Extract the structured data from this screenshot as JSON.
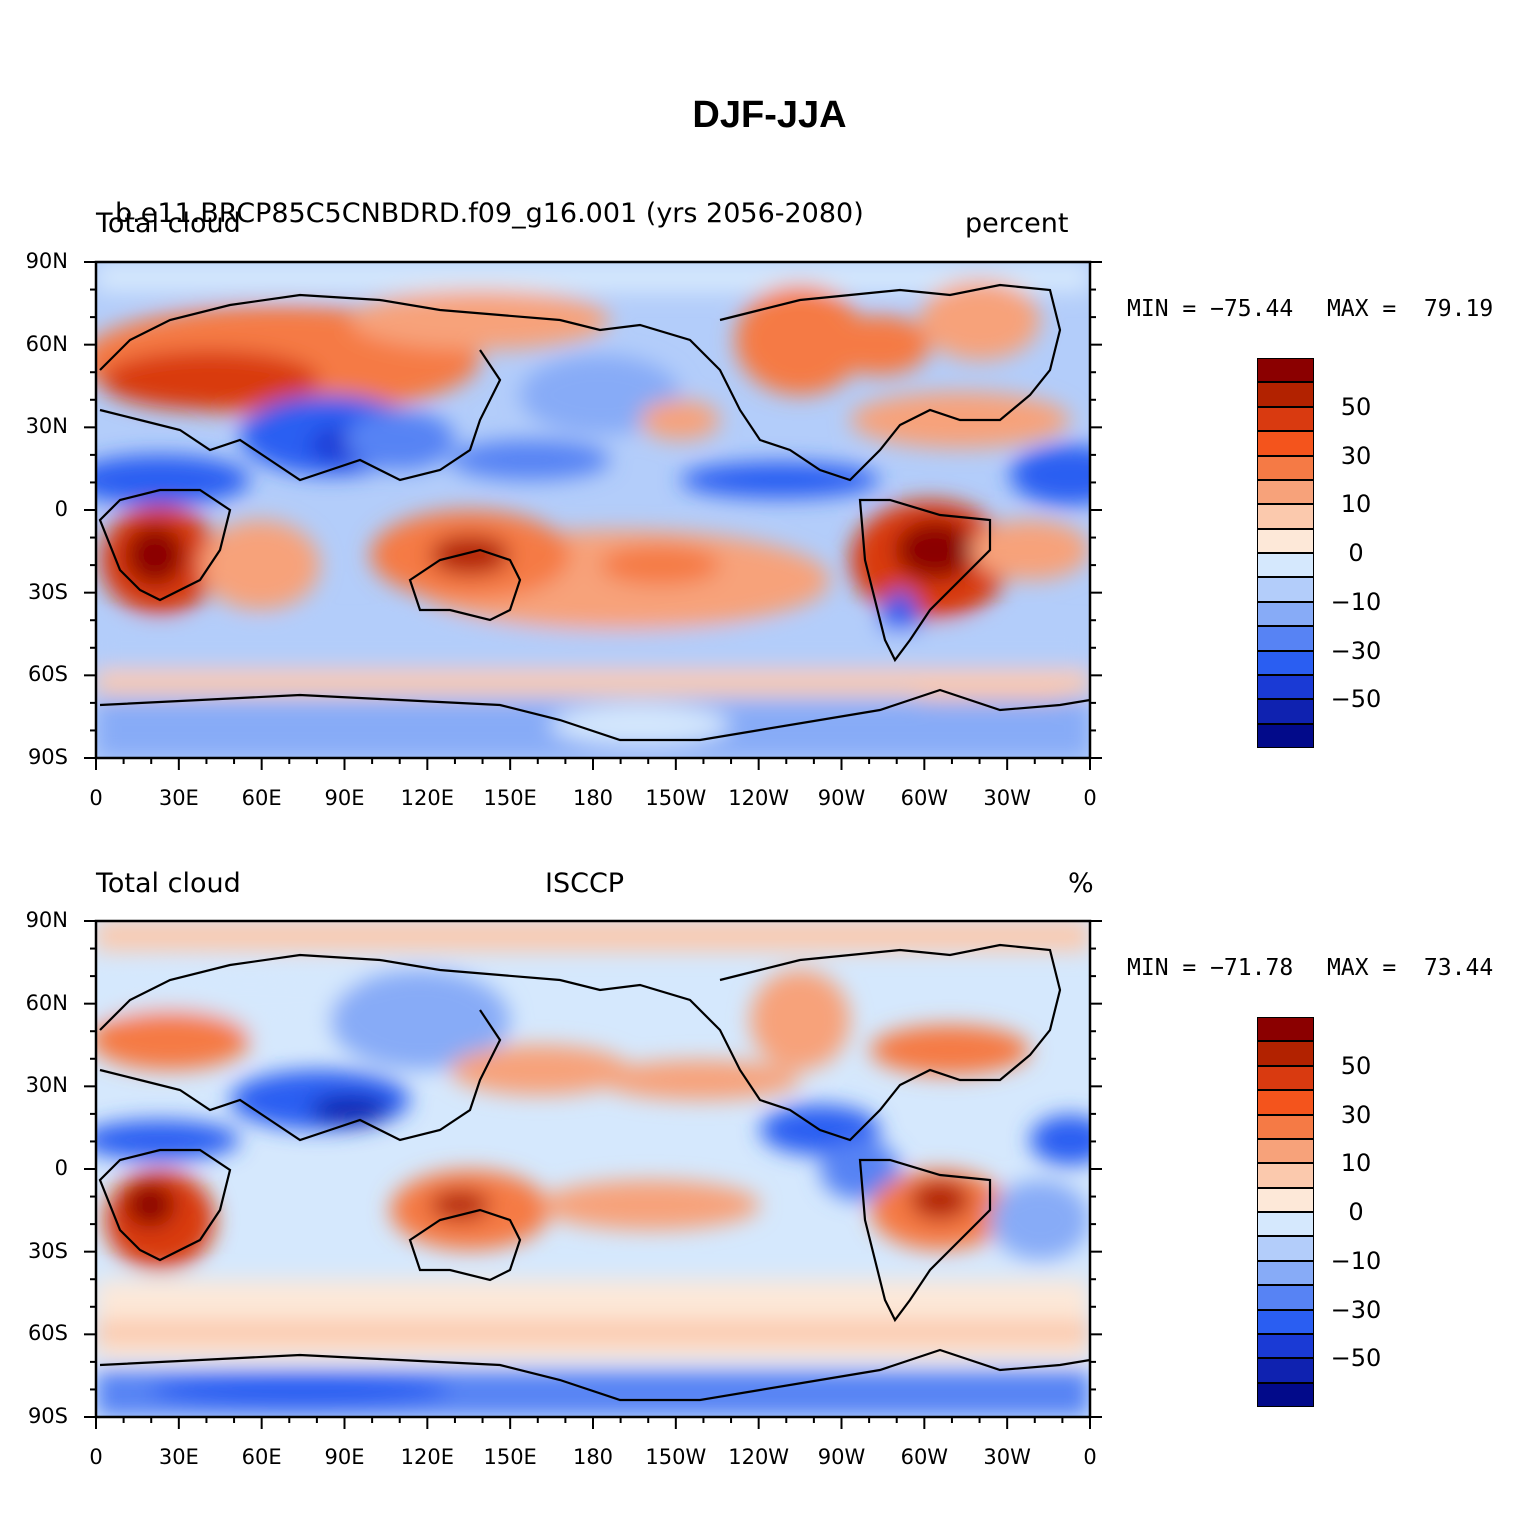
{
  "title": "DJF-JJA",
  "lat_labels": [
    "90N",
    "60N",
    "30N",
    "0",
    "30S",
    "60S",
    "90S"
  ],
  "lon_labels": [
    "0",
    "30E",
    "60E",
    "90E",
    "120E",
    "150E",
    "180",
    "150W",
    "120W",
    "90W",
    "60W",
    "30W",
    "0"
  ],
  "colorbar": {
    "labels": [
      "50",
      "30",
      "10",
      "0",
      "−10",
      "−30",
      "−50"
    ],
    "colors": [
      "#8b0000",
      "#b22200",
      "#d93a10",
      "#f4541c",
      "#f57a45",
      "#f7a27a",
      "#fbc9ad",
      "#fde8d8",
      "#d5e8fd",
      "#b3cdfa",
      "#87abf7",
      "#5783f4",
      "#2a5ef2",
      "#1a3ad5",
      "#0f22b0",
      "#020a8a"
    ]
  },
  "panels": [
    {
      "left_label": "Total cloud",
      "center_label": "b.e11.BRCP85C5CNBDRD.f09_g16.001 (yrs 2056-2080)",
      "right_label": "percent",
      "min_label": "MIN = −75.44",
      "max_label": "MAX =  79.19"
    },
    {
      "left_label": "Total cloud",
      "center_label": "ISCCP",
      "right_label": "%",
      "min_label": "MIN = −71.78",
      "max_label": "MAX =  73.44"
    }
  ]
}
